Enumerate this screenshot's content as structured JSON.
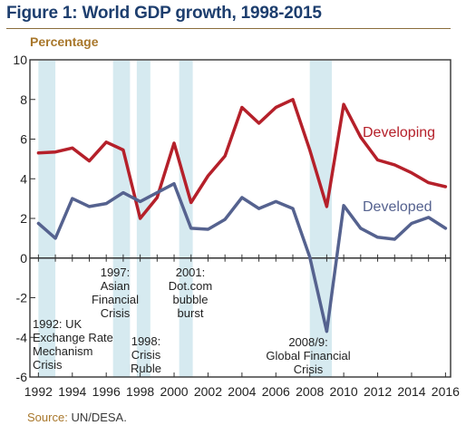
{
  "header": {
    "title": "Figure 1: World GDP growth, 1998-2015",
    "ylabel": "Percentage"
  },
  "footer": {
    "source_label": "Source:",
    "source_text": "UN/DESA."
  },
  "colors": {
    "developing": "#b5202a",
    "developed": "#55628f",
    "shade": "#d6eaf0",
    "axis": "#333333"
  },
  "chart_data": {
    "type": "line",
    "title": "Figure 1: World GDP growth, 1998-2015",
    "xlabel": "",
    "ylabel": "Percentage",
    "xlim": [
      1991.5,
      2016.3
    ],
    "ylim": [
      -6,
      10
    ],
    "x_ticks": [
      1992,
      1994,
      1996,
      1998,
      2000,
      2002,
      2004,
      2006,
      2008,
      2010,
      2012,
      2014,
      2016
    ],
    "y_ticks": [
      -6,
      -4,
      -2,
      0,
      2,
      4,
      6,
      8,
      10
    ],
    "grid": false,
    "x": [
      1992,
      1993,
      1994,
      1995,
      1996,
      1997,
      1998,
      1999,
      2000,
      2001,
      2002,
      2003,
      2004,
      2005,
      2006,
      2007,
      2008,
      2009,
      2010,
      2011,
      2012,
      2013,
      2014,
      2015,
      2016
    ],
    "series": [
      {
        "name": "Developing",
        "values": [
          5.3,
          5.35,
          5.55,
          4.9,
          5.85,
          5.45,
          2.0,
          3.05,
          5.8,
          2.8,
          4.15,
          5.15,
          7.6,
          6.8,
          7.6,
          8.0,
          5.45,
          2.6,
          7.75,
          6.1,
          4.95,
          4.7,
          4.3,
          3.8,
          3.6
        ]
      },
      {
        "name": "Developed",
        "values": [
          1.75,
          1.0,
          3.0,
          2.6,
          2.75,
          3.3,
          2.85,
          3.3,
          3.75,
          1.5,
          1.45,
          1.95,
          3.05,
          2.5,
          2.85,
          2.5,
          0.05,
          -3.7,
          2.65,
          1.5,
          1.05,
          0.95,
          1.75,
          2.05,
          1.5
        ]
      }
    ],
    "shaded_periods": [
      {
        "from": 1992.0,
        "to": 1993.0,
        "label": "1992: UK Exchange Rate Mechanism Crisis"
      },
      {
        "from": 1996.4,
        "to": 1997.4,
        "label": "1997: Asian Financial Crisis"
      },
      {
        "from": 1997.8,
        "to": 1998.6,
        "label": "1998: Crisis Ruble"
      },
      {
        "from": 2000.3,
        "to": 2001.1,
        "label": "2001: Dot.com bubble burst"
      },
      {
        "from": 2008.0,
        "to": 2009.3,
        "label": "2008/9: Global Financial Crisis"
      }
    ],
    "series_labels": [
      {
        "series": "Developing",
        "text": "Developing"
      },
      {
        "series": "Developed",
        "text": "Developed"
      }
    ],
    "annotations": [
      {
        "lines": [
          "1992: UK",
          "Exchange Rate",
          "Mechanism",
          "Crisis"
        ]
      },
      {
        "lines": [
          "1997:",
          "Asian",
          "Financial",
          "Crisis"
        ]
      },
      {
        "lines": [
          "1998:",
          "Crisis",
          "Ruble"
        ]
      },
      {
        "lines": [
          "2001:",
          "Dot.com",
          "bubble",
          "burst"
        ]
      },
      {
        "lines": [
          "2008/9:",
          "Global Financial",
          "Crisis"
        ]
      }
    ]
  }
}
